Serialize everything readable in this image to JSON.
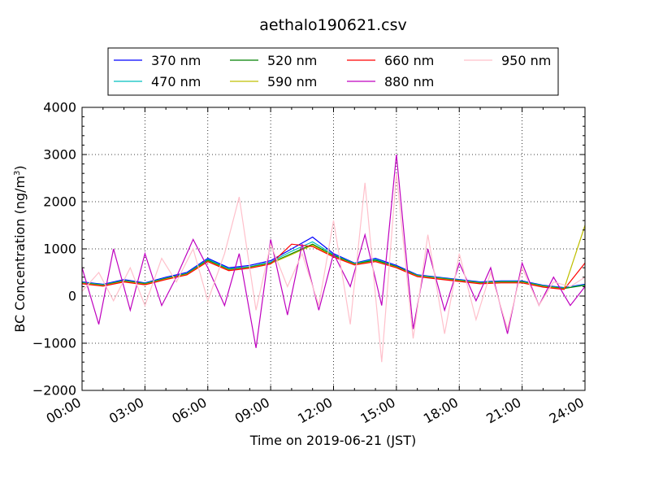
{
  "chart_data": {
    "type": "line",
    "title": "aethalo190621.csv",
    "xlabel": "Time on 2019-06-21 (JST)",
    "ylabel": "BC Concentration (ng/m³)",
    "ylabel_parts": {
      "main": "BC Concentration (ng/m",
      "sup": "3",
      "close": ")"
    },
    "xlim": [
      0,
      24
    ],
    "ylim": [
      -2000,
      4000
    ],
    "x_ticks": [
      0,
      3,
      6,
      9,
      12,
      15,
      18,
      21,
      24
    ],
    "x_tick_labels": [
      "00:00",
      "03:00",
      "06:00",
      "09:00",
      "12:00",
      "15:00",
      "18:00",
      "21:00",
      "24:00"
    ],
    "y_ticks": [
      -2000,
      -1000,
      0,
      1000,
      2000,
      3000,
      4000
    ],
    "y_tick_labels": [
      "−2000",
      "−1000",
      "0",
      "1000",
      "2000",
      "3000",
      "4000"
    ],
    "grid": true,
    "legend_placement": "top-center, above plot",
    "series": [
      {
        "name": "370 nm",
        "color": "#0000ff",
        "x": [
          0,
          1,
          2,
          3,
          4,
          5,
          6,
          7,
          8,
          9,
          10,
          11,
          12,
          13,
          14,
          15,
          16,
          17,
          18,
          19,
          20,
          21,
          22,
          23,
          24
        ],
        "y": [
          300,
          250,
          350,
          280,
          400,
          500,
          800,
          600,
          650,
          750,
          1000,
          1250,
          900,
          700,
          800,
          650,
          450,
          400,
          350,
          300,
          320,
          320,
          230,
          180,
          250
        ]
      },
      {
        "name": "470 nm",
        "color": "#00bfbf",
        "x": [
          0,
          1,
          2,
          3,
          4,
          5,
          6,
          7,
          8,
          9,
          10,
          11,
          12,
          13,
          14,
          15,
          16,
          17,
          18,
          19,
          20,
          21,
          22,
          23,
          24
        ],
        "y": [
          290,
          240,
          330,
          270,
          380,
          480,
          780,
          580,
          620,
          720,
          950,
          1150,
          880,
          690,
          780,
          630,
          440,
          390,
          340,
          290,
          310,
          310,
          220,
          170,
          240
        ]
      },
      {
        "name": "520 nm",
        "color": "#008000",
        "x": [
          0,
          1,
          2,
          3,
          4,
          5,
          6,
          7,
          8,
          9,
          10,
          11,
          12,
          13,
          14,
          15,
          16,
          17,
          18,
          19,
          20,
          21,
          22,
          23,
          24
        ],
        "y": [
          280,
          230,
          320,
          260,
          370,
          470,
          760,
          560,
          610,
          700,
          900,
          1100,
          860,
          680,
          760,
          620,
          430,
          380,
          330,
          280,
          300,
          300,
          210,
          160,
          230
        ]
      },
      {
        "name": "590 nm",
        "color": "#bfbf00",
        "x": [
          0,
          1,
          2,
          3,
          4,
          5,
          6,
          7,
          8,
          9,
          10,
          11,
          12,
          13,
          14,
          15,
          16,
          17,
          18,
          19,
          20,
          21,
          22,
          23,
          24
        ],
        "y": [
          270,
          220,
          310,
          250,
          360,
          460,
          740,
          550,
          600,
          690,
          880,
          1080,
          840,
          670,
          740,
          610,
          420,
          370,
          320,
          270,
          290,
          290,
          200,
          150,
          1500
        ]
      },
      {
        "name": "660 nm",
        "color": "#ff0000",
        "x": [
          0,
          1,
          2,
          3,
          4,
          5,
          6,
          7,
          8,
          9,
          10,
          11,
          12,
          13,
          14,
          15,
          16,
          17,
          18,
          19,
          20,
          21,
          22,
          23,
          24
        ],
        "y": [
          260,
          210,
          300,
          240,
          350,
          450,
          730,
          540,
          590,
          680,
          1100,
          1050,
          830,
          660,
          730,
          600,
          410,
          360,
          310,
          260,
          280,
          280,
          190,
          140,
          700
        ]
      },
      {
        "name": "880 nm",
        "color": "#bf00bf",
        "x": [
          0,
          0.8,
          1.5,
          2.3,
          3,
          3.8,
          4.5,
          5.3,
          6,
          6.8,
          7.5,
          8.3,
          9,
          9.8,
          10.5,
          11.3,
          12,
          12.8,
          13.5,
          14.3,
          15,
          15.8,
          16.5,
          17.3,
          18,
          18.8,
          19.5,
          20.3,
          21,
          21.8,
          22.5,
          23.3,
          24
        ],
        "y": [
          600,
          -600,
          1000,
          -300,
          900,
          -200,
          400,
          1200,
          600,
          -200,
          900,
          -1100,
          1200,
          -400,
          1100,
          -300,
          900,
          200,
          1300,
          -200,
          3000,
          -700,
          1000,
          -300,
          700,
          -100,
          600,
          -800,
          700,
          -200,
          400,
          -200,
          200
        ]
      },
      {
        "name": "950 nm",
        "color": "#ffc0cb",
        "x": [
          0,
          0.8,
          1.5,
          2.3,
          3,
          3.8,
          4.5,
          5.3,
          6,
          6.8,
          7.5,
          8.3,
          9,
          9.8,
          10.5,
          11.3,
          12,
          12.8,
          13.5,
          14.3,
          15,
          15.8,
          16.5,
          17.3,
          18,
          18.8,
          19.5,
          20.3,
          21,
          21.8,
          22.5,
          23.3,
          24
        ],
        "y": [
          100,
          500,
          -100,
          600,
          -200,
          800,
          300,
          1000,
          -100,
          900,
          2100,
          -300,
          1100,
          200,
          900,
          -200,
          1600,
          -600,
          2400,
          -1400,
          2600,
          -900,
          1300,
          -800,
          900,
          -500,
          500,
          -700,
          600,
          -200,
          300,
          200,
          400
        ]
      }
    ]
  }
}
